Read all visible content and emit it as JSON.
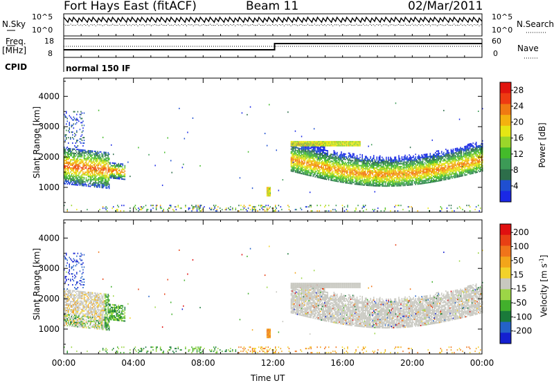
{
  "header": {
    "radar": "Fort Hays East (fitACF)",
    "beam": "Beam 11",
    "date": "02/Mar/2011"
  },
  "top_panels": {
    "noise": {
      "left_label": "N.Sky",
      "right_label": "N.Search",
      "left_ticks": [
        "10^5",
        "10^0"
      ],
      "right_ticks": [
        "10^5",
        "10^0"
      ]
    },
    "freq": {
      "left_label_1": "Freq.",
      "left_label_2": "[MHz]",
      "right_label": "Nave",
      "left_ticks": [
        "18",
        "8"
      ],
      "right_ticks": [
        "60",
        "0"
      ]
    },
    "cpid": {
      "label": "CPID",
      "value": "normal 150 IF"
    }
  },
  "colors": {
    "power_scale": [
      "#1a28e6",
      "#1f4fd0",
      "#2d6e4a",
      "#3c9a56",
      "#44bb2a",
      "#9bd62a",
      "#e6e614",
      "#f4b20f",
      "#f07a12",
      "#ee3b12",
      "#e0140e"
    ],
    "velocity_scale": [
      "#1420d0",
      "#2462c8",
      "#1a7a3a",
      "#42b02c",
      "#9cd646",
      "#c8c8c0",
      "#f2d22a",
      "#f3a51a",
      "#f0741a",
      "#e84014",
      "#e01010"
    ]
  },
  "chart_data": [
    {
      "type": "heatmap",
      "title": "",
      "xlabel": "Time UT",
      "ylabel": "Slant Range [km]",
      "xlim": [
        0,
        24
      ],
      "ylim": [
        180,
        4600
      ],
      "x_tick_labels": [
        "00:00",
        "04:00",
        "08:00",
        "12:00",
        "16:00",
        "20:00",
        "00:00"
      ],
      "y_ticks": [
        1000,
        2000,
        3000,
        4000
      ],
      "colorbar": {
        "label": "Power [dB]",
        "ticks": [
          4,
          8,
          12,
          16,
          20,
          24,
          28
        ],
        "range": [
          0,
          30
        ]
      },
      "features": [
        {
          "x": [
            0.0,
            2.5
          ],
          "y": [
            1500,
            1900
          ],
          "value": "high power (~24 dB)"
        },
        {
          "x": [
            11.6,
            11.8
          ],
          "y": [
            700,
            1000
          ],
          "value": "moderate power"
        },
        {
          "x": [
            13.0,
            24.0
          ],
          "y": [
            1100,
            2500
          ],
          "value": "band centered near 1500 km, peak ~24 dB"
        }
      ]
    },
    {
      "type": "heatmap",
      "title": "",
      "xlabel": "Time UT",
      "ylabel": "Slant Range [km]",
      "xlim": [
        0,
        24
      ],
      "ylim": [
        180,
        4600
      ],
      "x_tick_labels": [
        "00:00",
        "04:00",
        "08:00",
        "12:00",
        "16:00",
        "20:00",
        "00:00"
      ],
      "y_ticks": [
        1000,
        2000,
        3000,
        4000
      ],
      "colorbar": {
        "label": "Velocity [m s^-1]",
        "tick_labels": [
          "200",
          "100",
          "50",
          "15",
          "-15",
          "-50",
          "-100",
          "-200"
        ]
      },
      "features": [
        {
          "x": [
            0.0,
            3.5
          ],
          "y": [
            800,
            2100
          ],
          "value": "mixed, mostly ground scatter (grey) and negative velocities"
        },
        {
          "x": [
            13.0,
            24.0
          ],
          "y": [
            1100,
            2500
          ],
          "value": "mostly ground scatter (grey)"
        }
      ]
    }
  ]
}
